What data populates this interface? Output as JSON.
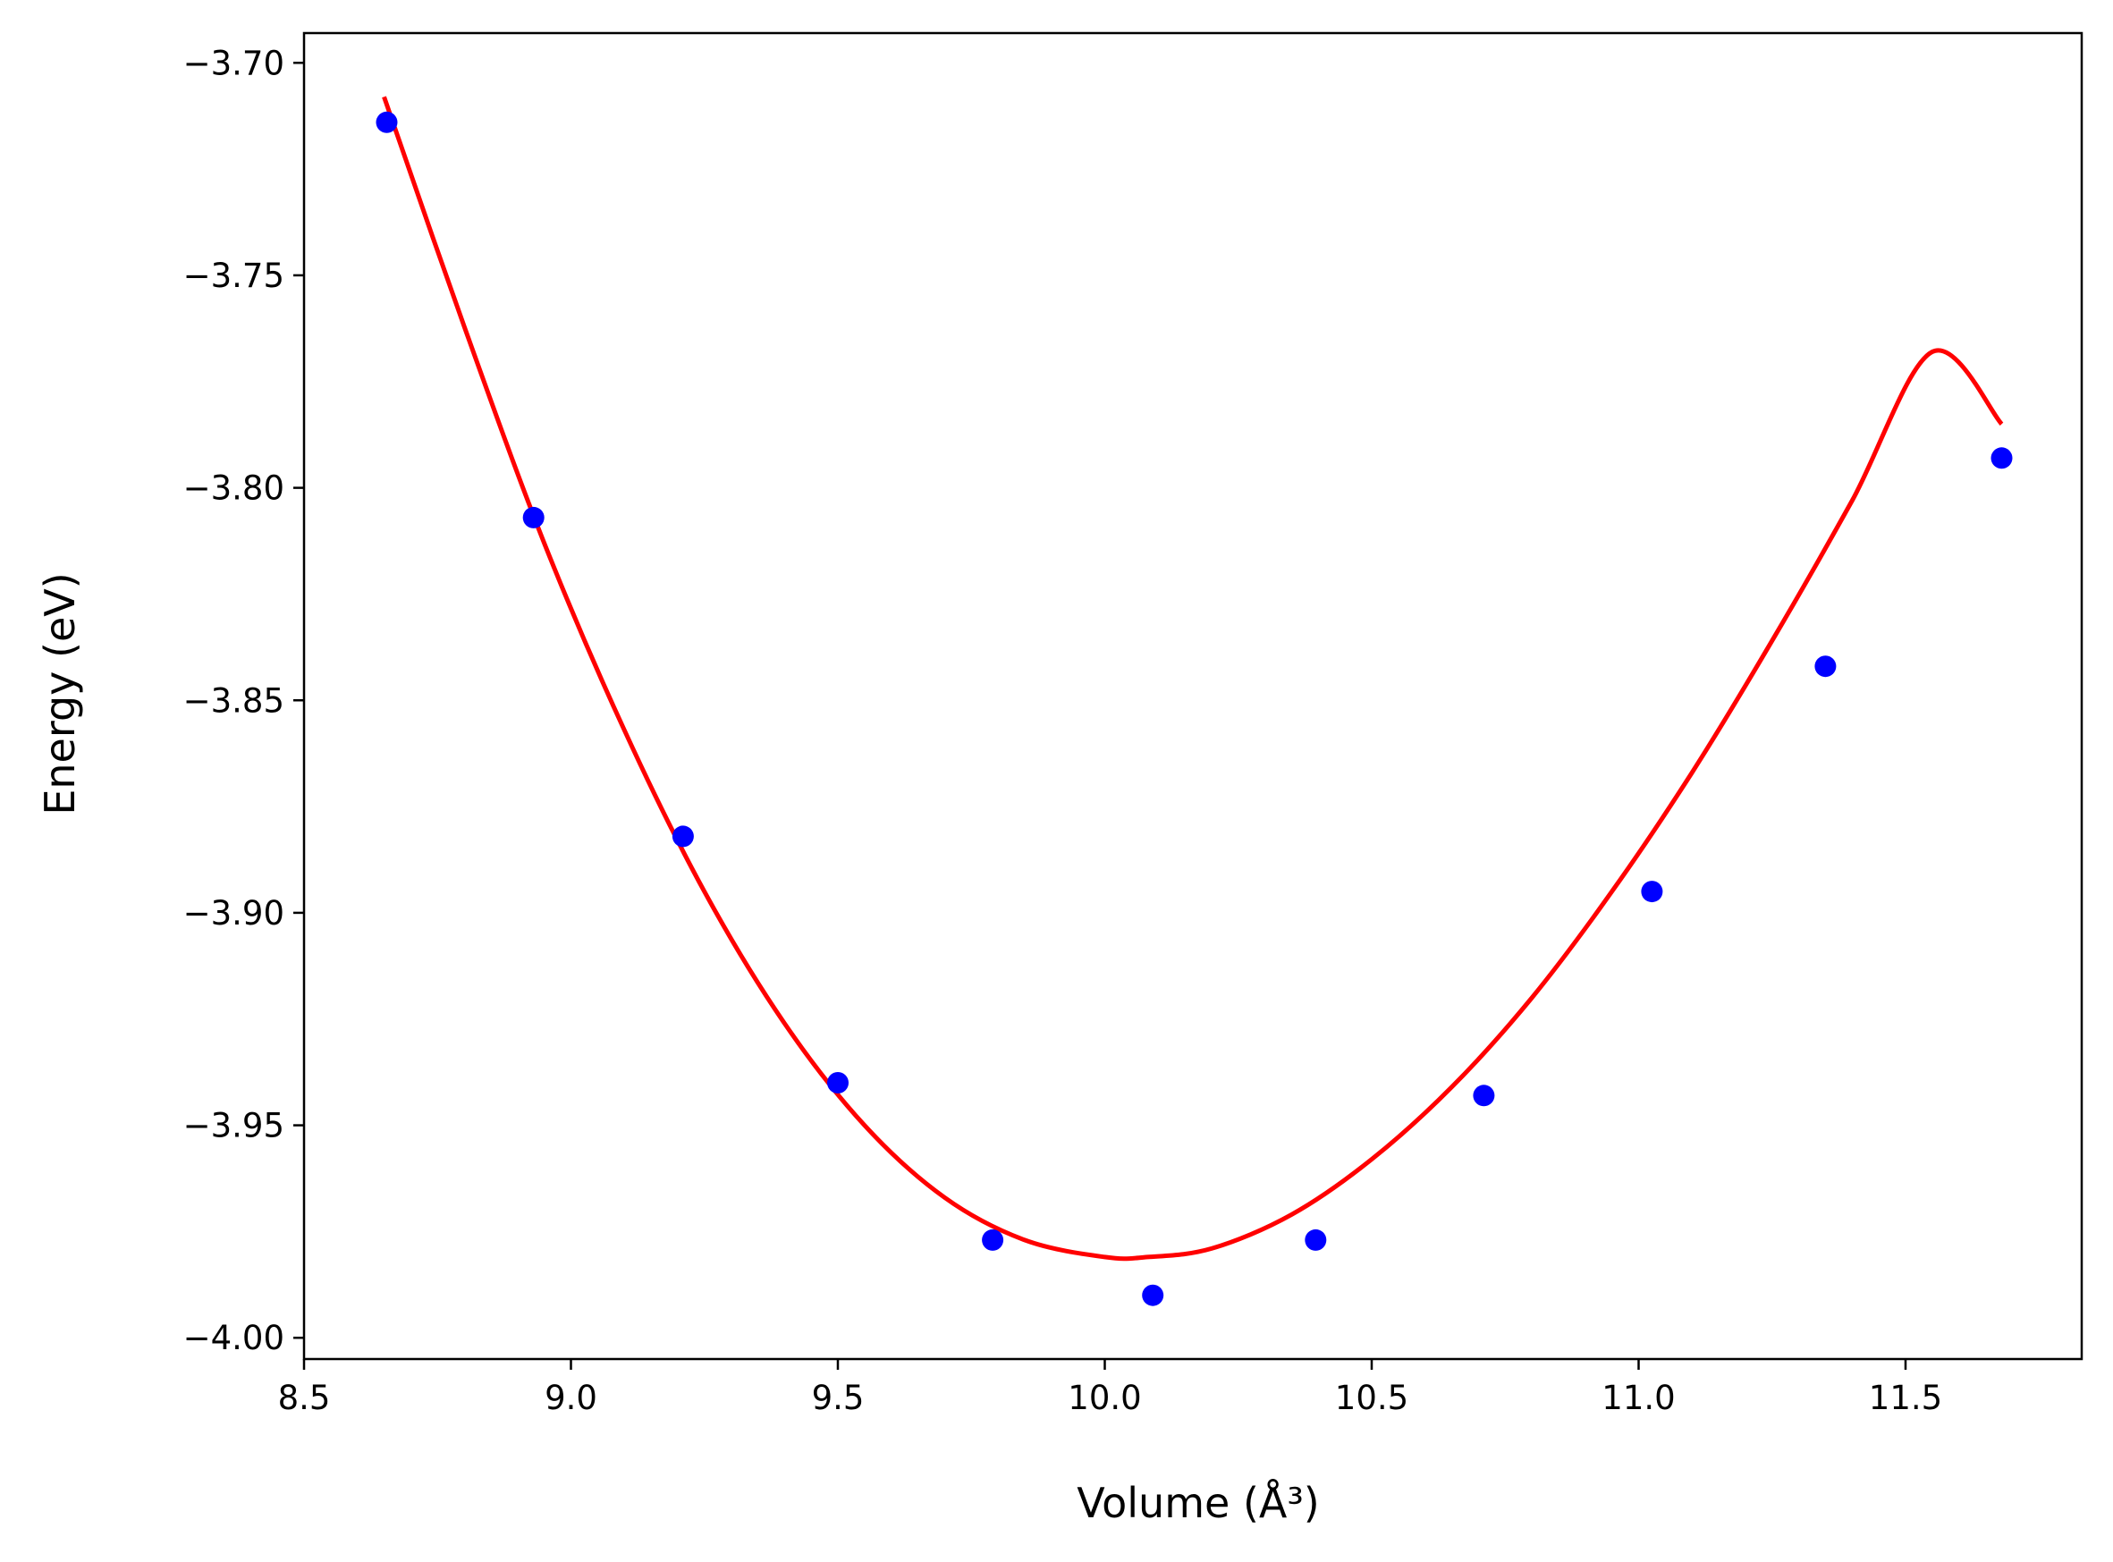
{
  "chart_data": {
    "type": "scatter",
    "title": "",
    "xlabel": "Volume (Å³)",
    "ylabel": "Energy (eV)",
    "xlim": [
      8.5,
      11.83
    ],
    "ylim": [
      -4.005,
      -3.693
    ],
    "xticks": [
      8.5,
      9.0,
      9.5,
      10.0,
      10.5,
      11.0,
      11.5
    ],
    "xtick_labels": [
      "8.5",
      "9.0",
      "9.5",
      "10.0",
      "10.5",
      "11.0",
      "11.5"
    ],
    "yticks": [
      -3.7,
      -3.75,
      -3.8,
      -3.85,
      -3.9,
      -3.95,
      -4.0
    ],
    "ytick_labels": [
      "−3.70",
      "−3.75",
      "−3.80",
      "−3.85",
      "−3.90",
      "−3.95",
      "−4.00"
    ],
    "grid": false,
    "legend": "none",
    "series": [
      {
        "kind": "points",
        "color": "#0000ff",
        "x": [
          8.655,
          8.93,
          9.21,
          9.5,
          9.79,
          10.09,
          10.395,
          10.71,
          11.025,
          11.35,
          11.68
        ],
        "y": [
          -3.714,
          -3.807,
          -3.882,
          -3.94,
          -3.977,
          -3.99,
          -3.977,
          -3.943,
          -3.895,
          -3.842,
          -3.793
        ]
      },
      {
        "kind": "fit-curve",
        "color": "#ff0000",
        "x": [
          8.65,
          8.8,
          8.95,
          9.1,
          9.25,
          9.4,
          9.55,
          9.7,
          9.85,
          10.0,
          10.08,
          10.2,
          10.35,
          10.5,
          10.65,
          10.8,
          10.95,
          11.1,
          11.25,
          11.4,
          11.55,
          11.68
        ],
        "y": [
          -3.708,
          -3.762,
          -3.813,
          -3.857,
          -3.895,
          -3.926,
          -3.95,
          -3.967,
          -3.977,
          -3.981,
          -3.981,
          -3.979,
          -3.971,
          -3.958,
          -3.941,
          -3.92,
          -3.895,
          -3.867,
          -3.836,
          -3.803,
          -3.768,
          -3.785
        ]
      }
    ]
  }
}
